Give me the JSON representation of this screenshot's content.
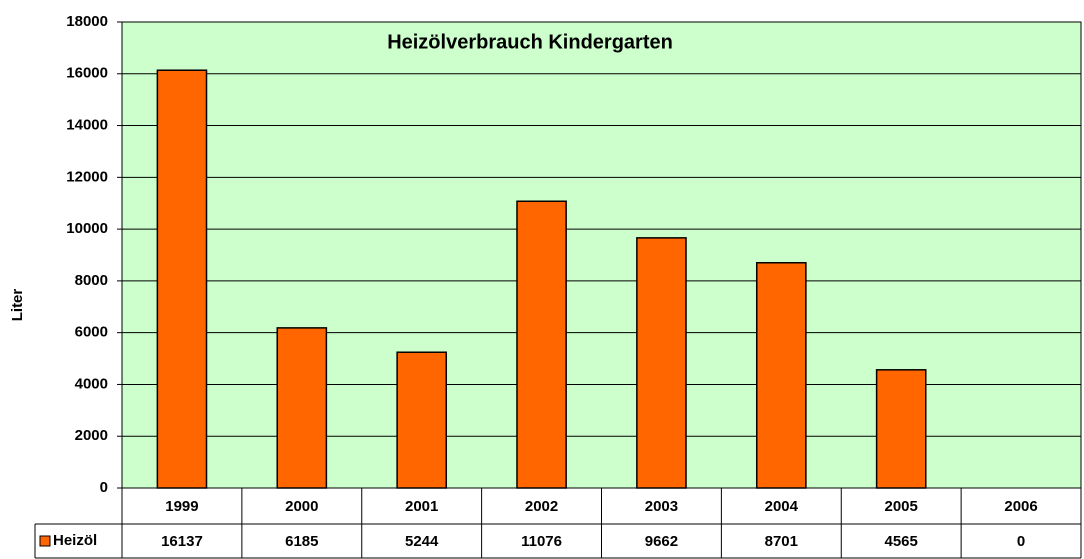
{
  "chart_data": {
    "type": "bar",
    "title": "Heizölverbrauch Kindergarten",
    "y_label": "Liter",
    "categories": [
      "1999",
      "2000",
      "2001",
      "2002",
      "2003",
      "2004",
      "2005",
      "2006"
    ],
    "series": [
      {
        "name": "Heizöl",
        "color": "#ff6600",
        "values": [
          16137,
          6185,
          5244,
          11076,
          9662,
          8701,
          4565,
          0
        ]
      }
    ],
    "ylim": [
      0,
      18000
    ],
    "yticks": [
      0,
      2000,
      4000,
      6000,
      8000,
      10000,
      12000,
      14000,
      16000,
      18000
    ],
    "grid": true,
    "plot_background": "#ccffcc"
  }
}
